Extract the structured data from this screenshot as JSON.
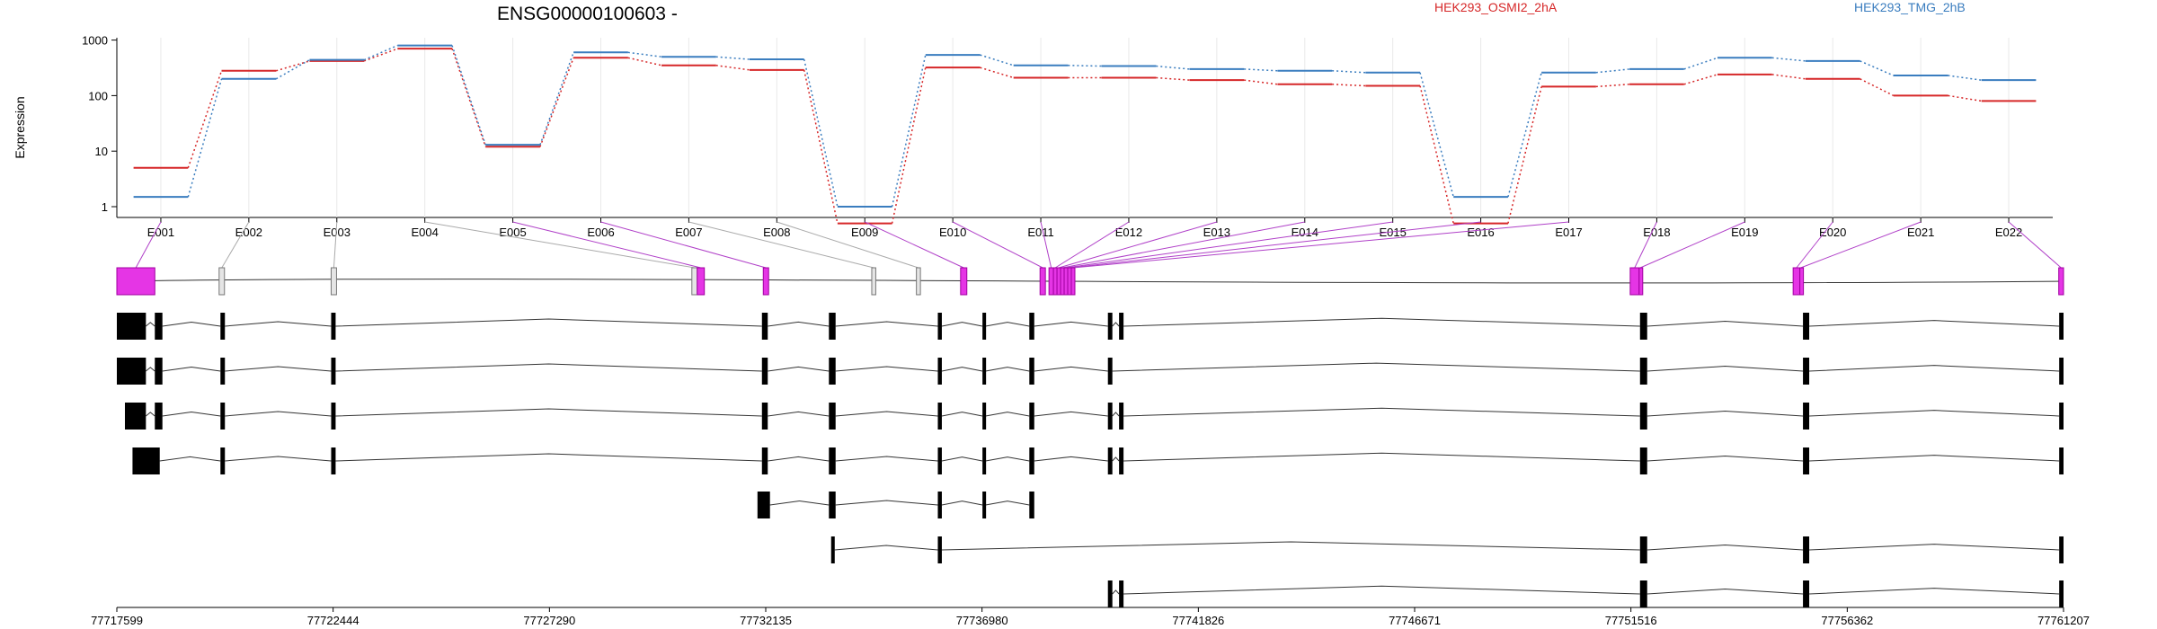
{
  "chart_data": {
    "type": "line",
    "title": "ENSG00000100603 -",
    "ylabel": "Expression",
    "xlabel": "",
    "y_scale": "log",
    "ylim": [
      0.5,
      1000
    ],
    "y_ticks": [
      "1",
      "10",
      "100",
      "1000"
    ],
    "grid": "vertical lines at exon bins",
    "legend_placement": "top",
    "categories": [
      "E001",
      "E002",
      "E003",
      "E004",
      "E005",
      "E006",
      "E007",
      "E008",
      "E009",
      "E010",
      "E011",
      "E012",
      "E013",
      "E014",
      "E015",
      "E016",
      "E017",
      "E018",
      "E019",
      "E020",
      "E021",
      "E022"
    ],
    "series": [
      {
        "name": "HEK293_OSMI2_2hA",
        "color": "#d62728",
        "values": [
          5,
          280,
          420,
          700,
          12,
          480,
          350,
          290,
          0.5,
          320,
          210,
          210,
          190,
          160,
          150,
          0.5,
          145,
          160,
          240,
          200,
          100,
          80
        ]
      },
      {
        "name": "HEK293_TMG_2hB",
        "color": "#3a7dbf",
        "values": [
          1.5,
          200,
          440,
          800,
          13,
          600,
          500,
          450,
          1,
          540,
          350,
          340,
          300,
          280,
          260,
          1.5,
          260,
          300,
          480,
          420,
          230,
          190
        ]
      }
    ],
    "genomic_axis": {
      "ticks": [
        "77717599",
        "77722444",
        "77727290",
        "77732135",
        "77736980",
        "77741826",
        "77746671",
        "77751516",
        "77756362",
        "77761207"
      ],
      "start": 77717599,
      "end": 77761207
    },
    "exon_bins": [
      {
        "id": "E001",
        "start": 77717599,
        "end": 77718450,
        "state": "significant"
      },
      {
        "id": "E002",
        "start": 77719890,
        "end": 77720010,
        "state": "not_significant"
      },
      {
        "id": "E003",
        "start": 77722400,
        "end": 77722520,
        "state": "not_significant"
      },
      {
        "id": "E004",
        "start": 77730480,
        "end": 77730600,
        "state": "not_significant"
      },
      {
        "id": "E005",
        "start": 77730600,
        "end": 77730760,
        "state": "significant"
      },
      {
        "id": "E006",
        "start": 77732080,
        "end": 77732200,
        "state": "significant"
      },
      {
        "id": "E007",
        "start": 77734510,
        "end": 77734600,
        "state": "not_significant"
      },
      {
        "id": "E008",
        "start": 77735510,
        "end": 77735600,
        "state": "not_significant"
      },
      {
        "id": "E009",
        "start": 77736500,
        "end": 77736640,
        "state": "significant"
      },
      {
        "id": "E010",
        "start": 77738280,
        "end": 77738400,
        "state": "significant"
      },
      {
        "id": "E011",
        "start": 77738480,
        "end": 77738580,
        "state": "significant"
      },
      {
        "id": "E012",
        "start": 77738580,
        "end": 77738660,
        "state": "significant"
      },
      {
        "id": "E013",
        "start": 77738660,
        "end": 77738740,
        "state": "significant"
      },
      {
        "id": "E014",
        "start": 77738740,
        "end": 77738820,
        "state": "significant"
      },
      {
        "id": "E015",
        "start": 77738820,
        "end": 77738900,
        "state": "significant"
      },
      {
        "id": "E016",
        "start": 77738900,
        "end": 77738980,
        "state": "significant"
      },
      {
        "id": "E017",
        "start": 77738980,
        "end": 77739060,
        "state": "significant"
      },
      {
        "id": "E018",
        "start": 77751500,
        "end": 77751700,
        "state": "significant"
      },
      {
        "id": "E019",
        "start": 77751700,
        "end": 77751750,
        "state": "significant"
      },
      {
        "id": "E020",
        "start": 77755150,
        "end": 77755300,
        "state": "significant"
      },
      {
        "id": "E021",
        "start": 77755300,
        "end": 77755340,
        "state": "significant"
      },
      {
        "id": "E022",
        "start": 77761100,
        "end": 77761207,
        "state": "significant"
      }
    ],
    "transcripts": [
      {
        "blocks": [
          [
            77717599,
            77718250
          ],
          [
            77718450,
            77718620
          ],
          [
            77719920,
            77720020
          ],
          [
            77722400,
            77722500
          ],
          [
            77732050,
            77732180
          ],
          [
            77733550,
            77733700
          ],
          [
            77735990,
            77736080
          ],
          [
            77736990,
            77737060
          ],
          [
            77738040,
            77738150
          ],
          [
            77739800,
            77739900
          ],
          [
            77740050,
            77740150
          ],
          [
            77751720,
            77751880
          ],
          [
            77755370,
            77755510
          ],
          [
            77761110,
            77761207
          ]
        ]
      },
      {
        "blocks": [
          [
            77717599,
            77718250
          ],
          [
            77718450,
            77718620
          ],
          [
            77719920,
            77720020
          ],
          [
            77722400,
            77722500
          ],
          [
            77732050,
            77732180
          ],
          [
            77733550,
            77733700
          ],
          [
            77735990,
            77736080
          ],
          [
            77736990,
            77737060
          ],
          [
            77738040,
            77738150
          ],
          [
            77739800,
            77739900
          ],
          [
            77751720,
            77751880
          ],
          [
            77755370,
            77755510
          ],
          [
            77761110,
            77761207
          ]
        ]
      },
      {
        "blocks": [
          [
            77717780,
            77718250
          ],
          [
            77718450,
            77718620
          ],
          [
            77719920,
            77720020
          ],
          [
            77722400,
            77722500
          ],
          [
            77732050,
            77732180
          ],
          [
            77733550,
            77733700
          ],
          [
            77735990,
            77736080
          ],
          [
            77736990,
            77737060
          ],
          [
            77738040,
            77738150
          ],
          [
            77739800,
            77739900
          ],
          [
            77740050,
            77740150
          ],
          [
            77751720,
            77751880
          ],
          [
            77755370,
            77755510
          ],
          [
            77761110,
            77761207
          ]
        ]
      },
      {
        "blocks": [
          [
            77717950,
            77718560
          ],
          [
            77719920,
            77720020
          ],
          [
            77722400,
            77722500
          ],
          [
            77732050,
            77732180
          ],
          [
            77733550,
            77733700
          ],
          [
            77735990,
            77736080
          ],
          [
            77736990,
            77737060
          ],
          [
            77738040,
            77738150
          ],
          [
            77739800,
            77739900
          ],
          [
            77740050,
            77740150
          ],
          [
            77751720,
            77751880
          ],
          [
            77755370,
            77755510
          ],
          [
            77761110,
            77761207
          ]
        ]
      },
      {
        "blocks": [
          [
            77731950,
            77732230
          ],
          [
            77733550,
            77733700
          ],
          [
            77735990,
            77736080
          ],
          [
            77736990,
            77737060
          ],
          [
            77738040,
            77738150
          ]
        ]
      },
      {
        "blocks": [
          [
            77733600,
            77733680
          ],
          [
            77735990,
            77736080
          ],
          [
            77751720,
            77751880
          ],
          [
            77755370,
            77755510
          ],
          [
            77761110,
            77761207
          ]
        ]
      },
      {
        "blocks": [
          [
            77739800,
            77739900
          ],
          [
            77740050,
            77740150
          ],
          [
            77751720,
            77751880
          ],
          [
            77755370,
            77755510
          ],
          [
            77761110,
            77761207
          ]
        ]
      }
    ]
  }
}
